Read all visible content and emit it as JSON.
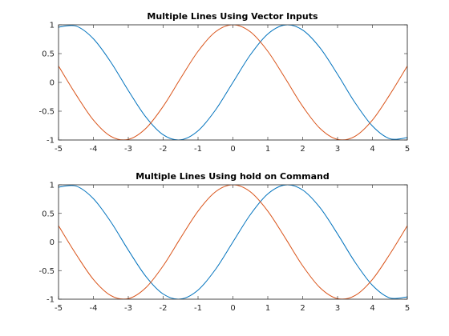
{
  "figure": {
    "background": "#ffffff",
    "line_colors": [
      "#0072BD",
      "#D95319"
    ]
  },
  "chart_data": [
    {
      "type": "line",
      "title": "Multiple Lines Using Vector Inputs",
      "xlabel": "",
      "ylabel": "",
      "xlim": [
        -5,
        5
      ],
      "ylim": [
        -1,
        1
      ],
      "xticks": [
        "-5",
        "-4",
        "-3",
        "-2",
        "-1",
        "0",
        "1",
        "2",
        "3",
        "4",
        "5"
      ],
      "yticks": [
        "-1",
        "-0.5",
        "0",
        "0.5",
        "1"
      ],
      "grid": false,
      "x": [
        -5,
        -4.5,
        -4,
        -3.5,
        -3,
        -2.5,
        -2,
        -1.5,
        -1,
        -0.5,
        0,
        0.5,
        1,
        1.5,
        2,
        2.5,
        3,
        3.5,
        4,
        4.5,
        5
      ],
      "series": [
        {
          "color": "#0072BD",
          "values": [
            0.959,
            0.978,
            0.757,
            0.351,
            -0.141,
            -0.598,
            -0.909,
            -0.997,
            -0.841,
            -0.479,
            0,
            0.479,
            0.841,
            0.997,
            0.909,
            0.598,
            0.141,
            -0.351,
            -0.757,
            -0.978,
            -0.959
          ]
        },
        {
          "color": "#D95319",
          "values": [
            0.284,
            -0.211,
            -0.654,
            -0.936,
            -0.99,
            -0.801,
            -0.416,
            0.071,
            0.54,
            0.878,
            1,
            0.878,
            0.54,
            0.071,
            -0.416,
            -0.801,
            -0.99,
            -0.936,
            -0.654,
            -0.211,
            0.284
          ]
        }
      ]
    },
    {
      "type": "line",
      "title": "Multiple Lines Using hold on Command",
      "xlabel": "",
      "ylabel": "",
      "xlim": [
        -5,
        5
      ],
      "ylim": [
        -1,
        1
      ],
      "xticks": [
        "-5",
        "-4",
        "-3",
        "-2",
        "-1",
        "0",
        "1",
        "2",
        "3",
        "4",
        "5"
      ],
      "yticks": [
        "-1",
        "-0.5",
        "0",
        "0.5",
        "1"
      ],
      "grid": false,
      "x": [
        -5,
        -4.5,
        -4,
        -3.5,
        -3,
        -2.5,
        -2,
        -1.5,
        -1,
        -0.5,
        0,
        0.5,
        1,
        1.5,
        2,
        2.5,
        3,
        3.5,
        4,
        4.5,
        5
      ],
      "series": [
        {
          "color": "#0072BD",
          "values": [
            0.959,
            0.978,
            0.757,
            0.351,
            -0.141,
            -0.598,
            -0.909,
            -0.997,
            -0.841,
            -0.479,
            0,
            0.479,
            0.841,
            0.997,
            0.909,
            0.598,
            0.141,
            -0.351,
            -0.757,
            -0.978,
            -0.959
          ]
        },
        {
          "color": "#D95319",
          "values": [
            0.284,
            -0.211,
            -0.654,
            -0.936,
            -0.99,
            -0.801,
            -0.416,
            0.071,
            0.54,
            0.878,
            1,
            0.878,
            0.54,
            0.071,
            -0.416,
            -0.801,
            -0.99,
            -0.936,
            -0.654,
            -0.211,
            0.284
          ]
        }
      ]
    }
  ]
}
